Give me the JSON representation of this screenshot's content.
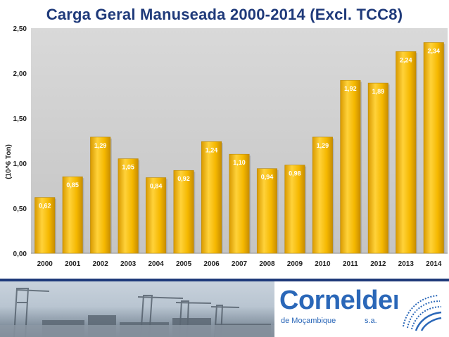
{
  "chart_data": {
    "type": "bar",
    "title": "Carga Geral Manuseada 2000-2014 (Excl. TCC8)",
    "ylabel": "(10^6 Ton)",
    "xlabel": "",
    "ylim": [
      0,
      2.5
    ],
    "yticks": [
      "0,00",
      "0,50",
      "1,00",
      "1,50",
      "2,00",
      "2,50"
    ],
    "categories": [
      "2000",
      "2001",
      "2002",
      "2003",
      "2004",
      "2005",
      "2006",
      "2007",
      "2008",
      "2009",
      "2010",
      "2011",
      "2012",
      "2013",
      "2014"
    ],
    "values": [
      0.62,
      0.85,
      1.29,
      1.05,
      0.84,
      0.92,
      1.24,
      1.1,
      0.94,
      0.98,
      1.29,
      1.92,
      1.89,
      2.24,
      2.34
    ],
    "value_labels": [
      "0,62",
      "0,85",
      "1,29",
      "1,05",
      "0,84",
      "0,92",
      "1,24",
      "1,10",
      "0,94",
      "0,98",
      "1,29",
      "1,92",
      "1,89",
      "2,24",
      "2,34"
    ],
    "grid": false,
    "legend": "none",
    "colors": {
      "bar": "#f5b800",
      "bar_highlight": "#ffd84a",
      "bar_shadow": "#b98700",
      "plot_bg": "#cfcfcf",
      "title": "#1f3a7a"
    }
  },
  "footer": {
    "logo_text": "Cornelder",
    "logo_subtext": "de Moçambique",
    "logo_suffix": "s.a.",
    "logo_emblem_icon": "wave-emblem-icon"
  }
}
